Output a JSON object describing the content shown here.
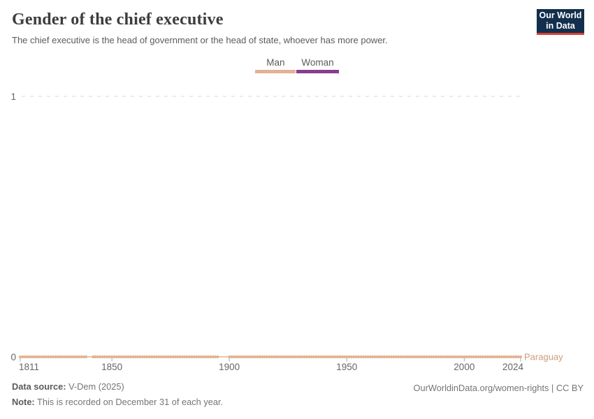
{
  "header": {
    "title": "Gender of the chief executive",
    "subtitle": "The chief executive is the head of government or the head of state, whoever has more power."
  },
  "logo": {
    "line1": "Our World",
    "line2": "in Data",
    "bg_color": "#12304d",
    "accent_color": "#dc3e32"
  },
  "legend": {
    "items": [
      {
        "label": "Man",
        "color": "#e2b293"
      },
      {
        "label": "Woman",
        "color": "#883e90"
      }
    ]
  },
  "chart_data": {
    "type": "line",
    "title": "Gender of the chief executive",
    "subtitle": "The chief executive is the head of government or the head of state, whoever has more power.",
    "xlabel": "",
    "ylabel": "",
    "xlim": [
      1811,
      2024
    ],
    "ylim": [
      0,
      1
    ],
    "xticks": [
      1811,
      1850,
      1900,
      1950,
      2000,
      2024
    ],
    "yticks": [
      0,
      1
    ],
    "grid": "horizontal dashed gridline at y=1 only",
    "legend_position": "top-center",
    "encoding_note": "y value 0 = Man, y value 1 = Woman; markers shown for every observed year",
    "series": [
      {
        "name": "Paraguay",
        "legend_value": "Man",
        "color": "#e2b293",
        "value": 0,
        "years": [
          1811,
          2024
        ],
        "missing_marker_years": [
          1840,
          1841,
          1896,
          1897,
          1898,
          1899
        ]
      }
    ]
  },
  "colors": {
    "grid": "#d9d9d9",
    "axis_text": "#666666",
    "tick": "#a8a8a8",
    "entity_label": "#cd9c79",
    "title_text": "#3d3d3d",
    "body_text": "#5b5b5b",
    "footer_text": "#757575"
  },
  "footer": {
    "source_label": "Data source:",
    "source_value": " V-Dem (2025)",
    "note_label": "Note:",
    "note_value": " This is recorded on December 31 of each year.",
    "link": "OurWorldinData.org/women-rights | CC BY"
  }
}
